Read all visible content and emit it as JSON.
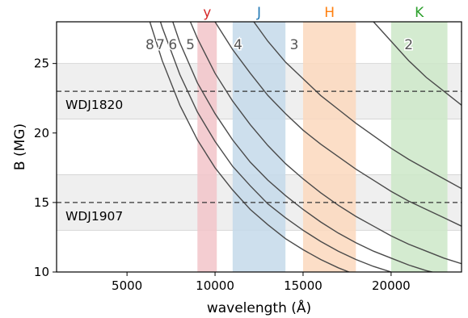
{
  "chart_data": {
    "type": "line",
    "xlabel": "wavelength (Å)",
    "ylabel": "B (MG)",
    "xlim": [
      1000,
      24000
    ],
    "ylim": [
      10,
      28
    ],
    "xticks": [
      5000,
      10000,
      15000,
      20000
    ],
    "xtick_labels": [
      "5000",
      "10000",
      "15000",
      "20000"
    ],
    "yticks": [
      10,
      15,
      20,
      25
    ],
    "ytick_labels": [
      "10",
      "15",
      "20",
      "25"
    ],
    "grid": false,
    "bands": [
      {
        "name": "y",
        "x_start": 9000,
        "x_end": 10100,
        "color": "#e377c2",
        "fill": "#f2c4c9",
        "label_color": "#d62728"
      },
      {
        "name": "J",
        "x_start": 11000,
        "x_end": 14000,
        "color": "#1f77b4",
        "fill": "#c4d9ea",
        "label_color": "#1f77b4"
      },
      {
        "name": "H",
        "x_start": 15000,
        "x_end": 18000,
        "color": "#ff7f0e",
        "fill": "#fbd8bd",
        "label_color": "#ff7f0e"
      },
      {
        "name": "K",
        "x_start": 20000,
        "x_end": 23200,
        "color": "#2ca02c",
        "fill": "#cde7c8",
        "label_color": "#2ca02c"
      }
    ],
    "field_ranges": [
      {
        "name": "WDJ1820",
        "y_center": 23,
        "y_low": 21,
        "y_high": 25
      },
      {
        "name": "WDJ1907",
        "y_center": 15,
        "y_low": 13,
        "y_high": 17
      }
    ],
    "series": [
      {
        "name": "2",
        "label_x": 21000,
        "x": [
          19000,
          20000,
          21000,
          22000,
          23000,
          24000
        ],
        "y": [
          28.0,
          26.6,
          25.2,
          24.0,
          23.0,
          22.0
        ]
      },
      {
        "name": "3",
        "label_x": 14500,
        "x": [
          12200,
          13000,
          14000,
          15000,
          16000,
          17000,
          18000,
          19000,
          20000,
          21000,
          22000,
          23000,
          24000
        ],
        "y": [
          28.0,
          26.6,
          25.1,
          23.9,
          22.7,
          21.7,
          20.7,
          19.8,
          18.9,
          18.1,
          17.4,
          16.7,
          16.0
        ]
      },
      {
        "name": "4",
        "label_x": 11300,
        "x": [
          10000,
          11000,
          12000,
          13000,
          14000,
          15000,
          16000,
          17000,
          18000,
          19000,
          20000,
          21000,
          22000,
          23000,
          24000
        ],
        "y": [
          28.0,
          26.0,
          24.3,
          22.7,
          21.4,
          20.2,
          19.2,
          18.3,
          17.4,
          16.6,
          15.8,
          15.1,
          14.5,
          13.9,
          13.3
        ]
      },
      {
        "name": "5",
        "label_x": 8600,
        "x": [
          8600,
          9000,
          10000,
          11000,
          12000,
          13000,
          14000,
          15000,
          16000,
          17000,
          18000,
          19000,
          20000,
          21000,
          22000,
          23000,
          24000
        ],
        "y": [
          28.0,
          26.8,
          24.3,
          22.3,
          20.6,
          19.1,
          17.8,
          16.7,
          15.7,
          14.8,
          14.0,
          13.3,
          12.6,
          12.0,
          11.5,
          11.0,
          10.6
        ]
      },
      {
        "name": "6",
        "label_x": 7600,
        "x": [
          7600,
          8000,
          9000,
          10000,
          11000,
          12000,
          13000,
          14000,
          15000,
          16000,
          17000,
          18000,
          19000,
          20000,
          21000,
          22000,
          23000,
          24000
        ],
        "y": [
          28.0,
          26.5,
          23.6,
          21.4,
          19.5,
          17.9,
          16.6,
          15.5,
          14.5,
          13.6,
          12.8,
          12.1,
          11.5,
          11.0,
          10.5,
          10.1,
          9.8,
          9.5
        ]
      },
      {
        "name": "7",
        "label_x": 6900,
        "x": [
          6900,
          7000,
          8000,
          9000,
          10000,
          11000,
          12000,
          13000,
          14000,
          15000,
          16000,
          17000,
          18000,
          19000,
          20000,
          21000,
          22000
        ],
        "y": [
          28.0,
          27.6,
          24.2,
          21.5,
          19.4,
          17.6,
          16.2,
          14.9,
          13.9,
          13.0,
          12.2,
          11.5,
          10.9,
          10.4,
          10.0,
          9.7,
          9.4
        ]
      },
      {
        "name": "8",
        "label_x": 6300,
        "x": [
          6300,
          7000,
          8000,
          9000,
          10000,
          11000,
          12000,
          13000,
          14000,
          15000,
          16000,
          17000,
          18000,
          19000
        ],
        "y": [
          28.0,
          25.2,
          22.0,
          19.5,
          17.5,
          15.9,
          14.5,
          13.4,
          12.4,
          11.6,
          10.9,
          10.3,
          9.8,
          9.4
        ]
      }
    ]
  }
}
